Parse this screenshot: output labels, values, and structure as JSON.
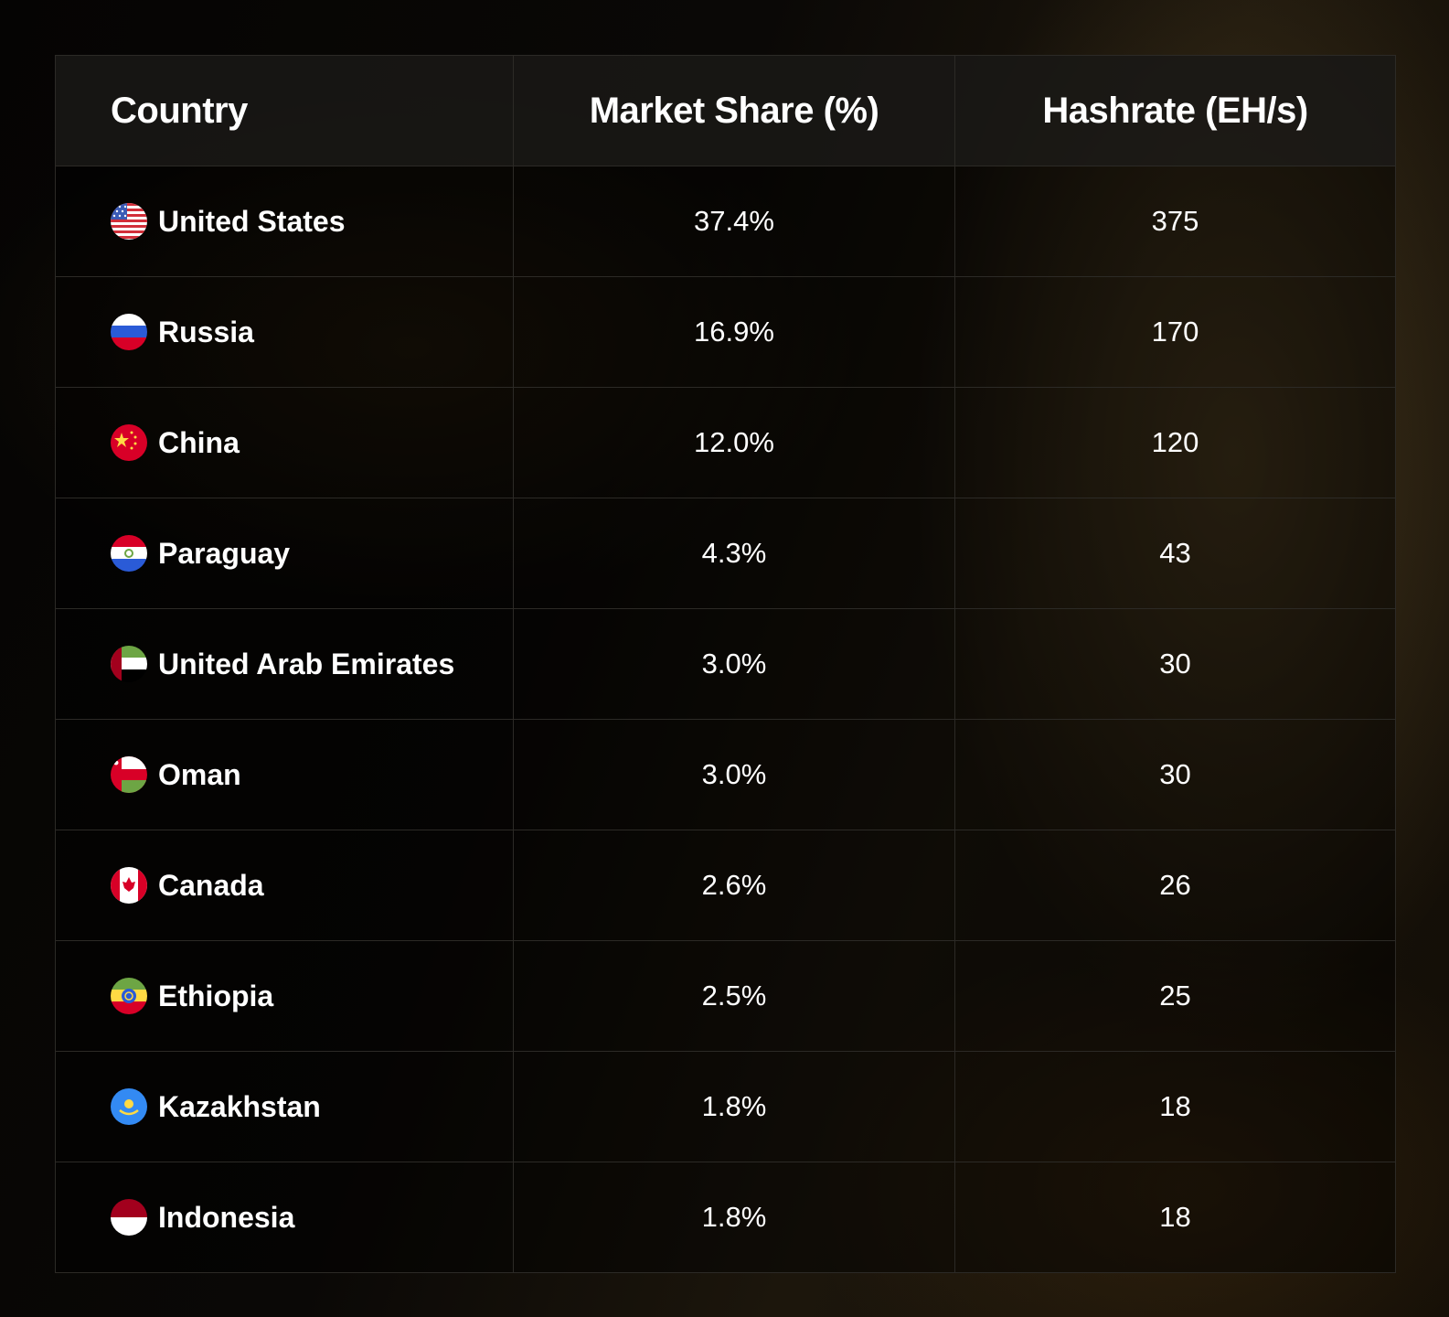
{
  "table": {
    "headers": [
      "Country",
      "Market Share (%)",
      "Hashrate (EH/s)"
    ],
    "rows": [
      {
        "flag": "us-flag-icon",
        "country": "United States",
        "share": "37.4%",
        "hashrate": "375"
      },
      {
        "flag": "russia-flag-icon",
        "country": "Russia",
        "share": "16.9%",
        "hashrate": "170"
      },
      {
        "flag": "china-flag-icon",
        "country": "China",
        "share": "12.0%",
        "hashrate": "120"
      },
      {
        "flag": "paraguay-flag-icon",
        "country": "Paraguay",
        "share": "4.3%",
        "hashrate": "43"
      },
      {
        "flag": "uae-flag-icon",
        "country": "United Arab Emirates",
        "share": "3.0%",
        "hashrate": "30"
      },
      {
        "flag": "oman-flag-icon",
        "country": "Oman",
        "share": "3.0%",
        "hashrate": "30"
      },
      {
        "flag": "canada-flag-icon",
        "country": "Canada",
        "share": "2.6%",
        "hashrate": "26"
      },
      {
        "flag": "ethiopia-flag-icon",
        "country": "Ethiopia",
        "share": "2.5%",
        "hashrate": "25"
      },
      {
        "flag": "kazakhstan-flag-icon",
        "country": "Kazakhstan",
        "share": "1.8%",
        "hashrate": "18"
      },
      {
        "flag": "indonesia-flag-icon",
        "country": "Indonesia",
        "share": "1.8%",
        "hashrate": "18"
      }
    ]
  }
}
